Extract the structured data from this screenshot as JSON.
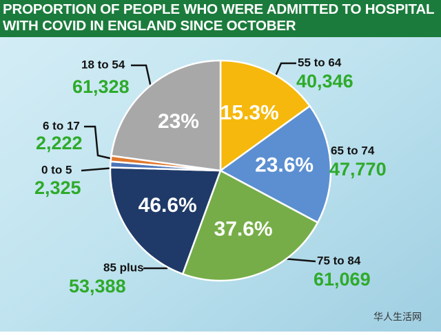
{
  "chart_data": {
    "type": "pie",
    "title": "PROPORTION OF PEOPLE WHO WERE ADMITTED TO HOSPITAL WITH COVID IN ENGLAND SINCE OCTOBER",
    "categories": [
      "55 to 64",
      "65 to 74",
      "75 to 84",
      "85 plus",
      "0 to 5",
      "6 to 17",
      "18 to 54"
    ],
    "values": [
      40346,
      47770,
      61069,
      53388,
      2325,
      2222,
      61328
    ],
    "value_labels": [
      "40,346",
      "47,770",
      "61,069",
      "53,388",
      "2,325",
      "2,222",
      "61,328"
    ],
    "percent_labels": [
      "15.3%",
      "23.6%",
      "37.6%",
      "46.6%",
      null,
      null,
      "23%"
    ],
    "colors": [
      "#f6b80c",
      "#5b8fd1",
      "#76ad48",
      "#1f3a68",
      "#4a74b8",
      "#e0782c",
      "#a8a8a8"
    ],
    "watermark": "华人生活网"
  }
}
